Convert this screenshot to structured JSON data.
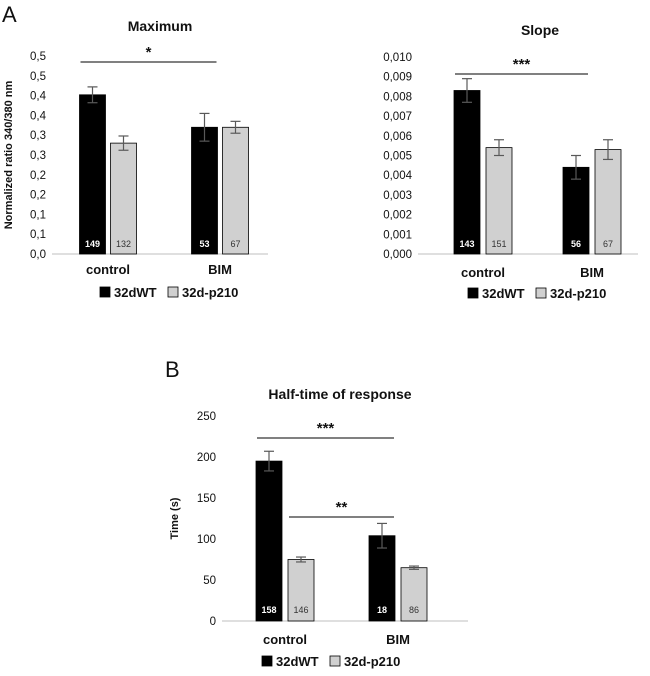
{
  "panel_labels": [
    "A",
    "B"
  ],
  "chart_data": [
    {
      "type": "bar",
      "title": "Maximum",
      "xlabel": "",
      "ylabel": "Normalized ratio 340/380 nm",
      "ylim": [
        0.0,
        0.5
      ],
      "yticks": [
        "0,0",
        "0,1",
        "0,1",
        "0,2",
        "0,2",
        "0,3",
        "0,3",
        "0,4",
        "0,4",
        "0,5",
        "0,5"
      ],
      "categories": [
        "control",
        "BIM"
      ],
      "series": [
        {
          "name": "32dWT",
          "color": "#000000",
          "values": [
            0.402,
            0.32
          ],
          "errors": [
            0.02,
            0.035
          ],
          "n": [
            "149",
            "53"
          ]
        },
        {
          "name": "32d-p210",
          "color": "#d0d0d0",
          "values": [
            0.28,
            0.32
          ],
          "errors": [
            0.018,
            0.015
          ],
          "n": [
            "132",
            "67"
          ]
        }
      ],
      "significance": [
        {
          "label": "*",
          "from": [
            0,
            0
          ],
          "to": [
            1,
            0
          ]
        }
      ]
    },
    {
      "type": "bar",
      "title": "Slope",
      "xlabel": "",
      "ylabel": "",
      "ylim": [
        0.0,
        0.01
      ],
      "yticks": [
        "0,000",
        "0,001",
        "0,002",
        "0,003",
        "0,004",
        "0,005",
        "0,006",
        "0,007",
        "0,008",
        "0,009",
        "0,010"
      ],
      "categories": [
        "control",
        "BIM"
      ],
      "series": [
        {
          "name": "32dWT",
          "color": "#000000",
          "values": [
            0.0083,
            0.0044
          ],
          "errors": [
            0.0006,
            0.0006
          ],
          "n": [
            "143",
            "56"
          ]
        },
        {
          "name": "32d-p210",
          "color": "#d0d0d0",
          "values": [
            0.0054,
            0.0053
          ],
          "errors": [
            0.0004,
            0.0005
          ],
          "n": [
            "151",
            "67"
          ]
        }
      ],
      "significance": [
        {
          "label": "***",
          "from": [
            0,
            0
          ],
          "to": [
            1,
            0
          ]
        }
      ]
    },
    {
      "type": "bar",
      "title": "Half-time of response",
      "xlabel": "",
      "ylabel": "Time (s)",
      "ylim": [
        0,
        250
      ],
      "yticks": [
        "0",
        "50",
        "100",
        "150",
        "200",
        "250"
      ],
      "categories": [
        "control",
        "BIM"
      ],
      "series": [
        {
          "name": "32dWT",
          "color": "#000000",
          "values": [
            195,
            104
          ],
          "errors": [
            12,
            15
          ],
          "n": [
            "158",
            "18"
          ]
        },
        {
          "name": "32d-p210",
          "color": "#d0d0d0",
          "values": [
            75,
            65
          ],
          "errors": [
            3,
            2
          ],
          "n": [
            "146",
            "86"
          ]
        }
      ],
      "significance": [
        {
          "label": "***",
          "from": [
            0,
            0
          ],
          "to": [
            1,
            0
          ]
        },
        {
          "label": "**",
          "from": [
            0,
            1
          ],
          "to": [
            1,
            0
          ]
        }
      ]
    }
  ]
}
